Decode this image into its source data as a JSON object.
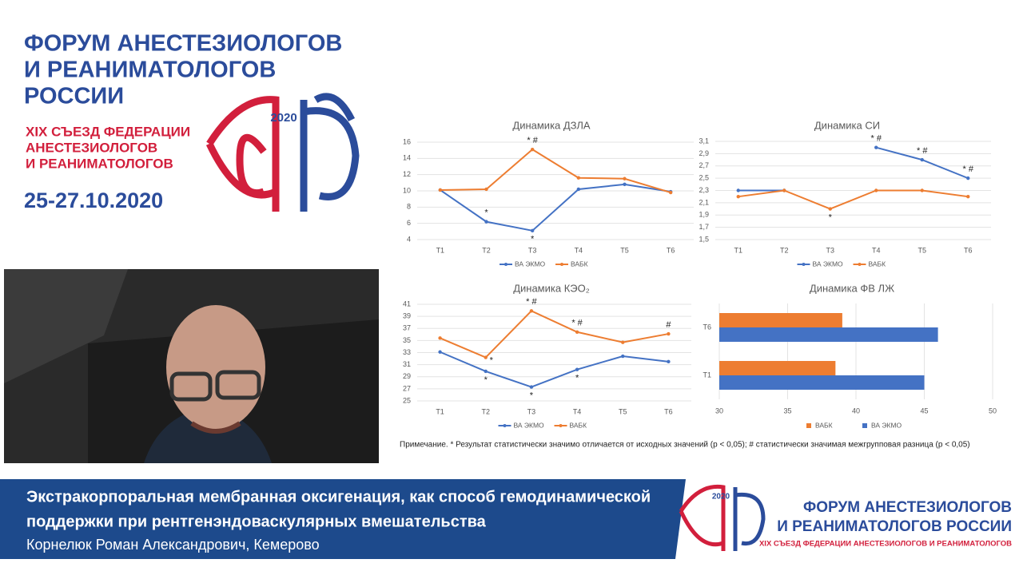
{
  "header": {
    "title_lines": [
      "ФОРУМ АНЕСТЕЗИОЛОГОВ",
      "И РЕАНИМАТОЛОГОВ",
      "РОССИИ"
    ],
    "subtitle_lines": [
      "XIX СЪЕЗД ФЕДЕРАЦИИ",
      "АНЕСТЕЗИОЛОГОВ",
      "И РЕАНИМАТОЛОГОВ"
    ],
    "dates": "25-27.10.2020",
    "logo_year": "2020"
  },
  "chart_data": [
    {
      "type": "line",
      "title": "Динамика ДЗЛА",
      "categories": [
        "T1",
        "T2",
        "T3",
        "T4",
        "T5",
        "T6"
      ],
      "series": [
        {
          "name": "ВА ЭКМО",
          "color": "#4472c4",
          "values": [
            10.1,
            6.2,
            5.1,
            10.2,
            10.8,
            9.9
          ]
        },
        {
          "name": "ВАБК",
          "color": "#ed7d31",
          "values": [
            10.1,
            10.2,
            15.1,
            11.6,
            11.5,
            9.8
          ]
        }
      ],
      "ylim": [
        4,
        16
      ],
      "yticks": [
        4,
        6,
        8,
        10,
        12,
        14,
        16
      ],
      "grid": true,
      "annotations": [
        {
          "text": "*",
          "x": "T2",
          "y": 6.2,
          "position": "above"
        },
        {
          "text": "* #",
          "x": "T3",
          "y": 15.1,
          "position": "above"
        },
        {
          "text": "*",
          "x": "T3",
          "y": 5.1,
          "position": "below"
        }
      ]
    },
    {
      "type": "line",
      "title": "Динамика СИ",
      "categories": [
        "T1",
        "T2",
        "T3",
        "T4",
        "T5",
        "T6"
      ],
      "series": [
        {
          "name": "ВА ЭКМО",
          "color": "#4472c4",
          "values": [
            2.3,
            2.3,
            null,
            3.0,
            2.8,
            2.5
          ]
        },
        {
          "name": "ВАБК",
          "color": "#ed7d31",
          "values": [
            2.2,
            2.3,
            2.0,
            2.3,
            2.3,
            2.2
          ]
        }
      ],
      "ylim": [
        1.5,
        3.1
      ],
      "yticks": [
        {
          "value": 1.5,
          "label": "1,5"
        },
        {
          "value": 1.7,
          "label": "1,7"
        },
        {
          "value": 1.9,
          "label": "1,9"
        },
        {
          "value": 2.1,
          "label": "2,1"
        },
        {
          "value": 2.3,
          "label": "2,3"
        },
        {
          "value": 2.5,
          "label": "2,5"
        },
        {
          "value": 2.7,
          "label": "2,7"
        },
        {
          "value": 2.9,
          "label": "2,9"
        },
        {
          "value": 3.1,
          "label": "3,1"
        }
      ],
      "grid": true,
      "annotations": [
        {
          "text": "* #",
          "x": "T4",
          "y": 3.0,
          "position": "above"
        },
        {
          "text": "* #",
          "x": "T5",
          "y": 2.8,
          "position": "above"
        },
        {
          "text": "* #",
          "x": "T6",
          "y": 2.5,
          "position": "above"
        },
        {
          "text": "*",
          "x": "T3",
          "y": 2.0,
          "position": "below"
        }
      ]
    },
    {
      "type": "line",
      "title": "Динамика КЭО₂",
      "categories": [
        "T1",
        "T2",
        "T3",
        "T4",
        "T5",
        "T6"
      ],
      "series": [
        {
          "name": "ВА ЭКМО",
          "color": "#4472c4",
          "values": [
            33.1,
            29.9,
            27.3,
            30.2,
            32.4,
            31.5
          ]
        },
        {
          "name": "ВАБК",
          "color": "#ed7d31",
          "values": [
            35.4,
            32.2,
            39.9,
            36.4,
            34.7,
            36.1
          ]
        }
      ],
      "ylim": [
        25,
        41
      ],
      "yticks": [
        25,
        27,
        29,
        31,
        33,
        35,
        37,
        39,
        41
      ],
      "grid": true,
      "annotations": [
        {
          "text": "*",
          "x": "T2",
          "y": 32.2,
          "position": "right"
        },
        {
          "text": "*",
          "x": "T2",
          "y": 29.9,
          "position": "below"
        },
        {
          "text": "* #",
          "x": "T3",
          "y": 39.9,
          "position": "above"
        },
        {
          "text": "*",
          "x": "T3",
          "y": 27.3,
          "position": "below"
        },
        {
          "text": "* #",
          "x": "T4",
          "y": 36.4,
          "position": "above"
        },
        {
          "text": "*",
          "x": "T4",
          "y": 30.2,
          "position": "below"
        },
        {
          "text": "#",
          "x": "T6",
          "y": 36.1,
          "position": "above"
        }
      ]
    },
    {
      "type": "hbar",
      "title": "Динамика ФВ ЛЖ",
      "categories": [
        "T1",
        "T6"
      ],
      "series": [
        {
          "name": "ВАБК",
          "color": "#ed7d31",
          "values": [
            38.5,
            39
          ]
        },
        {
          "name": "ВА ЭКМО",
          "color": "#4472c4",
          "values": [
            45,
            46
          ]
        }
      ],
      "xlim": [
        30,
        50
      ],
      "xticks": [
        30,
        35,
        40,
        45,
        50
      ],
      "grid": true
    }
  ],
  "note": "Примечание. * Результат статистически значимо отличается от исходных значений (p < 0,05); # статистически значимая межгрупповая разница (p < 0,05)",
  "banner": {
    "talk_lines": [
      "Экстракорпоральная мембранная оксигенация, как способ гемодинамической",
      "поддержки при рентгенэндоваскулярных вмешательства"
    ],
    "speaker": "Корнелюк Роман Александрович, Кемерово",
    "logo_year": "2020",
    "forum_lines": [
      "ФОРУМ АНЕСТЕЗИОЛОГОВ",
      "И РЕАНИМАТОЛОГОВ РОССИИ"
    ],
    "congress": "XIX СЪЕЗД ФЕДЕРАЦИИ АНЕСТЕЗИОЛОГОВ И РЕАНИМАТОЛОГОВ"
  }
}
